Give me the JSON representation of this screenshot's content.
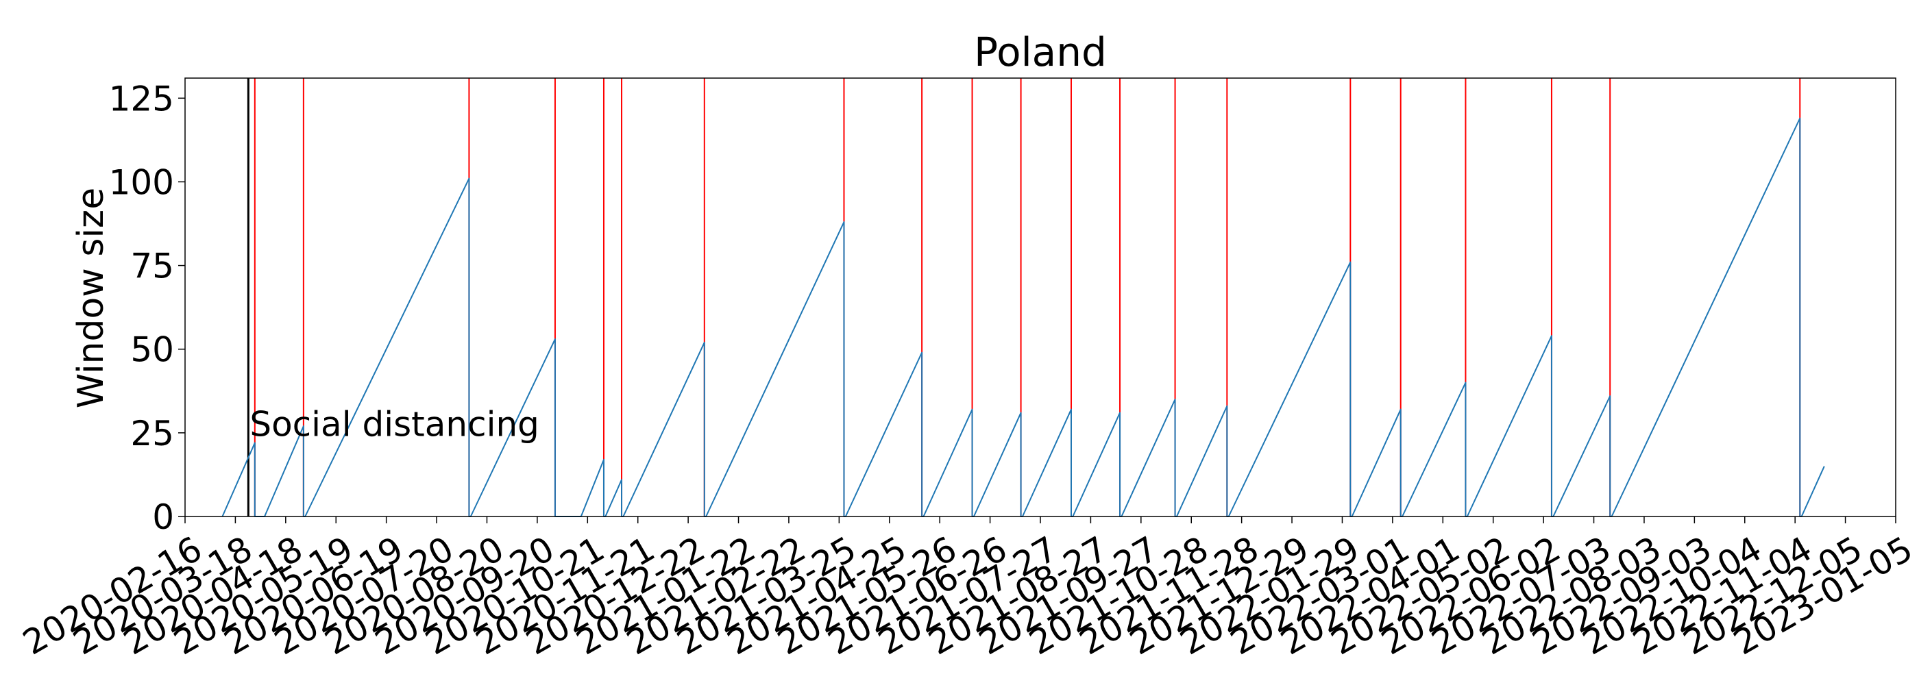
{
  "chart_data": {
    "type": "line",
    "title": "Poland",
    "xlabel": "",
    "ylabel": "Window size",
    "x_scale": "date",
    "xlim": [
      "2020-02-16",
      "2023-01-05"
    ],
    "ylim": [
      0,
      131
    ],
    "grid": false,
    "legend": "none",
    "y_ticks": [
      0,
      25,
      50,
      75,
      100,
      125
    ],
    "x_tick_labels": [
      "2020-02-16",
      "2020-03-18",
      "2020-04-18",
      "2020-05-19",
      "2020-06-19",
      "2020-07-20",
      "2020-08-20",
      "2020-09-20",
      "2020-10-21",
      "2020-11-21",
      "2020-12-22",
      "2021-01-22",
      "2021-02-22",
      "2021-03-25",
      "2021-04-25",
      "2021-05-26",
      "2021-06-26",
      "2021-07-27",
      "2021-08-27",
      "2021-09-27",
      "2021-10-28",
      "2021-11-28",
      "2021-12-29",
      "2022-01-29",
      "2022-03-01",
      "2022-04-01",
      "2022-05-02",
      "2022-06-02",
      "2022-07-03",
      "2022-08-03",
      "2022-09-03",
      "2022-10-04",
      "2022-11-04",
      "2022-12-05",
      "2023-01-05"
    ],
    "series": [
      {
        "color": "#1f77b4",
        "points": [
          [
            "2020-03-10",
            0
          ],
          [
            "2020-03-30",
            22
          ],
          [
            "2020-03-30",
            0
          ],
          [
            "2020-04-05",
            0
          ],
          [
            "2020-04-29",
            27
          ],
          [
            "2020-04-29",
            0
          ],
          [
            "2020-04-30",
            0
          ],
          [
            "2020-08-09",
            101
          ],
          [
            "2020-08-09",
            0
          ],
          [
            "2020-08-10",
            0
          ],
          [
            "2020-10-01",
            53
          ],
          [
            "2020-10-01",
            0
          ],
          [
            "2020-10-17",
            0
          ],
          [
            "2020-10-31",
            17
          ],
          [
            "2020-10-31",
            0
          ],
          [
            "2020-11-01",
            0
          ],
          [
            "2020-11-11",
            11
          ],
          [
            "2020-11-11",
            0
          ],
          [
            "2020-11-12",
            0
          ],
          [
            "2021-01-01",
            52
          ],
          [
            "2021-01-01",
            0
          ],
          [
            "2021-01-02",
            0
          ],
          [
            "2021-03-28",
            88
          ],
          [
            "2021-03-28",
            0
          ],
          [
            "2021-03-29",
            0
          ],
          [
            "2021-05-15",
            49
          ],
          [
            "2021-05-15",
            0
          ],
          [
            "2021-05-16",
            0
          ],
          [
            "2021-06-15",
            32
          ],
          [
            "2021-06-15",
            0
          ],
          [
            "2021-06-16",
            0
          ],
          [
            "2021-07-15",
            31
          ],
          [
            "2021-07-15",
            0
          ],
          [
            "2021-07-16",
            0
          ],
          [
            "2021-08-15",
            32
          ],
          [
            "2021-08-15",
            0
          ],
          [
            "2021-08-16",
            0
          ],
          [
            "2021-09-14",
            31
          ],
          [
            "2021-09-14",
            0
          ],
          [
            "2021-09-15",
            0
          ],
          [
            "2021-10-18",
            35
          ],
          [
            "2021-10-18",
            0
          ],
          [
            "2021-10-19",
            0
          ],
          [
            "2021-11-19",
            33
          ],
          [
            "2021-11-19",
            0
          ],
          [
            "2021-11-20",
            0
          ],
          [
            "2022-02-03",
            76
          ],
          [
            "2022-02-03",
            0
          ],
          [
            "2022-02-04",
            0
          ],
          [
            "2022-03-06",
            32
          ],
          [
            "2022-03-06",
            0
          ],
          [
            "2022-03-07",
            0
          ],
          [
            "2022-04-15",
            40
          ],
          [
            "2022-04-15",
            0
          ],
          [
            "2022-04-16",
            0
          ],
          [
            "2022-06-07",
            54
          ],
          [
            "2022-06-07",
            0
          ],
          [
            "2022-06-08",
            0
          ],
          [
            "2022-07-13",
            36
          ],
          [
            "2022-07-13",
            0
          ],
          [
            "2022-07-14",
            0
          ],
          [
            "2022-11-07",
            119
          ],
          [
            "2022-11-07",
            0
          ],
          [
            "2022-11-08",
            0
          ],
          [
            "2022-11-22",
            15
          ]
        ]
      }
    ],
    "change_point_color": "#ff0000",
    "change_points": [
      "2020-03-30",
      "2020-04-29",
      "2020-08-09",
      "2020-10-01",
      "2020-10-31",
      "2020-11-11",
      "2021-01-01",
      "2021-03-28",
      "2021-05-15",
      "2021-06-15",
      "2021-07-15",
      "2021-08-15",
      "2021-09-14",
      "2021-10-18",
      "2021-11-19",
      "2022-02-03",
      "2022-03-06",
      "2022-04-15",
      "2022-06-07",
      "2022-07-13",
      "2022-11-07"
    ],
    "event_line_color": "#000000",
    "event": {
      "date": "2020-03-26",
      "label": "Social distancing"
    }
  }
}
